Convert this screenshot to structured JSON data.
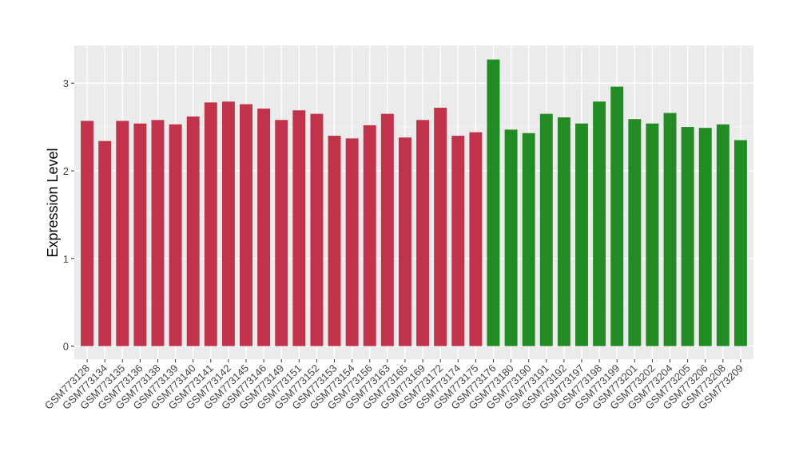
{
  "chart_data": {
    "type": "bar",
    "ylabel": "Expression Level",
    "xlabel": "",
    "ylim": [
      -0.15,
      3.43
    ],
    "yticks": [
      0,
      1,
      2,
      3
    ],
    "grid": true,
    "background": "#ebebeb",
    "categories": [
      "GSM773128",
      "GSM773134",
      "GSM773135",
      "GSM773136",
      "GSM773138",
      "GSM773139",
      "GSM773140",
      "GSM773141",
      "GSM773142",
      "GSM773145",
      "GSM773146",
      "GSM773149",
      "GSM773151",
      "GSM773152",
      "GSM773153",
      "GSM773154",
      "GSM773156",
      "GSM773163",
      "GSM773165",
      "GSM773169",
      "GSM773172",
      "GSM773174",
      "GSM773175",
      "GSM773176",
      "GSM773180",
      "GSM773190",
      "GSM773191",
      "GSM773192",
      "GSM773197",
      "GSM773198",
      "GSM773199",
      "GSM773201",
      "GSM773202",
      "GSM773204",
      "GSM773205",
      "GSM773206",
      "GSM773208",
      "GSM773209"
    ],
    "values": [
      2.57,
      2.34,
      2.57,
      2.54,
      2.58,
      2.53,
      2.62,
      2.78,
      2.79,
      2.76,
      2.71,
      2.58,
      2.69,
      2.65,
      2.4,
      2.37,
      2.52,
      2.65,
      2.38,
      2.58,
      2.72,
      2.4,
      2.44,
      3.27,
      2.47,
      2.43,
      2.65,
      2.61,
      2.54,
      2.79,
      2.96,
      2.59,
      2.54,
      2.66,
      2.5,
      2.49,
      2.53,
      2.35
    ],
    "groups": [
      "a",
      "a",
      "a",
      "a",
      "a",
      "a",
      "a",
      "a",
      "a",
      "a",
      "a",
      "a",
      "a",
      "a",
      "a",
      "a",
      "a",
      "a",
      "a",
      "a",
      "a",
      "a",
      "a",
      "b",
      "b",
      "b",
      "b",
      "b",
      "b",
      "b",
      "b",
      "b",
      "b",
      "b",
      "b",
      "b",
      "b",
      "b"
    ],
    "colors": {
      "a": "#c0334a",
      "b": "#238b24"
    }
  }
}
